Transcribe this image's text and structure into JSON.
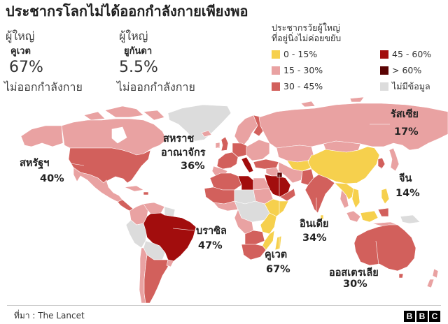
{
  "title": "ประชากรโลกไม่ได้ออกกำลังกายเพียงพอ",
  "stats": [
    {
      "prefix": "ผู้ใหญ่",
      "country": "คูเวต",
      "value": "67%",
      "suffix": "ไม่ออกกำลังกาย"
    },
    {
      "prefix": "ผู้ใหญ่",
      "country": "ยูกันดา",
      "value": "5.5%",
      "suffix": "ไม่ออกกำลังกาย"
    }
  ],
  "legend": {
    "title_lines": [
      "ประชากรวัยผู้ใหญ่",
      "ที่อยู่นิ่งไม่ค่อยขยับ"
    ],
    "items": [
      {
        "label": "0 - 15%",
        "color": "#f6d04d"
      },
      {
        "label": "15 - 30%",
        "color": "#e9a2a2"
      },
      {
        "label": "30 - 45%",
        "color": "#d2605c"
      },
      {
        "label": "45 - 60%",
        "color": "#a20d0d"
      },
      {
        "label": "> 60%",
        "color": "#5a0303"
      },
      {
        "label": "ไม่มีข้อมูล",
        "color": "#dcdcdc"
      }
    ]
  },
  "map_labels": [
    {
      "name_lines": [
        "สหรัฐฯ"
      ],
      "value": "40%"
    },
    {
      "name_lines": [
        "สหราช",
        "อาณาจักร"
      ],
      "value": "36%"
    },
    {
      "name_lines": [
        "รัสเซีย"
      ],
      "value": "17%"
    },
    {
      "name_lines": [
        "จีน"
      ],
      "value": "14%"
    },
    {
      "name_lines": [
        "บราซิล"
      ],
      "value": "47%"
    },
    {
      "name_lines": [
        "อินเดีย"
      ],
      "value": "34%"
    },
    {
      "name_lines": [
        "คูเวต"
      ],
      "value": "67%"
    },
    {
      "name_lines": [
        "ออสเตรเลีย"
      ],
      "value": "30%"
    }
  ],
  "footer": {
    "source": "ที่มา : The Lancet",
    "logo": [
      "B",
      "B",
      "C"
    ]
  }
}
